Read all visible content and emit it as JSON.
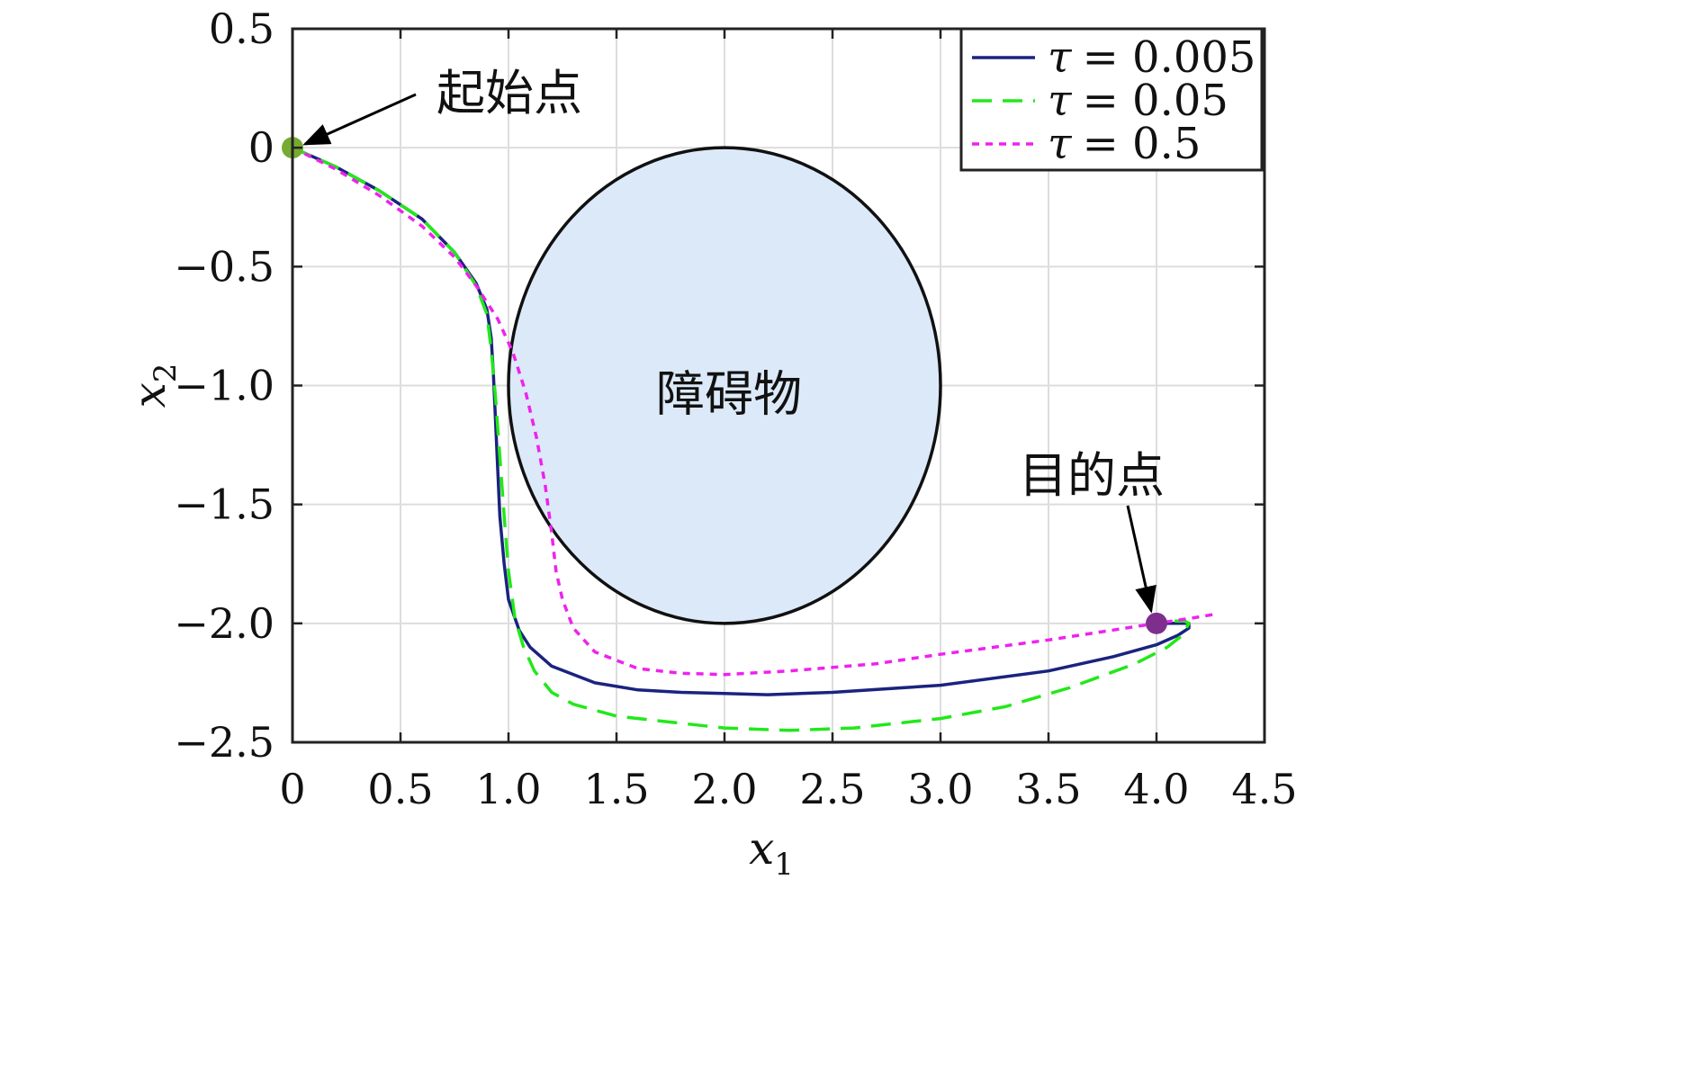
{
  "chart_data": {
    "type": "line",
    "xlabel": "x",
    "xlabel_sub": "1",
    "ylabel": "x",
    "ylabel_sub": "2",
    "xlim": [
      0,
      4.5
    ],
    "ylim": [
      -2.5,
      0.5
    ],
    "grid": true,
    "legend_position": "top-right",
    "xticks": [
      "0",
      "0.5",
      "1.0",
      "1.5",
      "2.0",
      "2.5",
      "3.0",
      "3.5",
      "4.0",
      "4.5"
    ],
    "xtick_values": [
      0,
      0.5,
      1.0,
      1.5,
      2.0,
      2.5,
      3.0,
      3.5,
      4.0,
      4.5
    ],
    "yticks": [
      "0.5",
      "0",
      "−0.5",
      "−1.0",
      "−1.5",
      "−2.0",
      "−2.5"
    ],
    "ytick_values": [
      0.5,
      0,
      -0.5,
      -1.0,
      -1.5,
      -2.0,
      -2.5
    ],
    "series": [
      {
        "name": "τ = 0.005",
        "tau_label": "τ",
        "value_label": "= 0.005",
        "color": "#1a237e",
        "dash": "solid",
        "x": [
          0,
          0.2,
          0.4,
          0.6,
          0.75,
          0.85,
          0.9,
          0.92,
          0.93,
          0.94,
          0.95,
          0.96,
          0.98,
          1.0,
          1.05,
          1.1,
          1.2,
          1.4,
          1.6,
          1.8,
          2.0,
          2.2,
          2.5,
          3.0,
          3.5,
          3.8,
          4.0,
          4.1,
          4.15,
          4.15,
          4.08,
          4.0
        ],
        "y": [
          0,
          -0.08,
          -0.18,
          -0.3,
          -0.44,
          -0.57,
          -0.68,
          -0.8,
          -0.95,
          -1.15,
          -1.35,
          -1.55,
          -1.75,
          -1.9,
          -2.03,
          -2.1,
          -2.18,
          -2.25,
          -2.28,
          -2.29,
          -2.295,
          -2.3,
          -2.29,
          -2.26,
          -2.2,
          -2.14,
          -2.09,
          -2.05,
          -2.02,
          -2.0,
          -2.0,
          -2.0
        ]
      },
      {
        "name": "τ = 0.05",
        "tau_label": "τ",
        "value_label": "= 0.05",
        "color": "#22e81a",
        "dash": "dashed",
        "x": [
          0,
          0.2,
          0.4,
          0.6,
          0.75,
          0.85,
          0.9,
          0.92,
          0.94,
          0.96,
          0.98,
          1.0,
          1.03,
          1.07,
          1.12,
          1.2,
          1.3,
          1.5,
          1.8,
          2.0,
          2.3,
          2.6,
          3.0,
          3.3,
          3.6,
          3.9,
          4.05,
          4.12,
          4.15,
          4.13,
          4.05,
          4.0
        ],
        "y": [
          0,
          -0.08,
          -0.18,
          -0.3,
          -0.44,
          -0.58,
          -0.7,
          -0.85,
          -1.05,
          -1.3,
          -1.55,
          -1.78,
          -1.98,
          -2.1,
          -2.2,
          -2.29,
          -2.34,
          -2.39,
          -2.42,
          -2.44,
          -2.45,
          -2.44,
          -2.4,
          -2.35,
          -2.27,
          -2.17,
          -2.1,
          -2.05,
          -2.0,
          -1.99,
          -1.99,
          -2.0
        ]
      },
      {
        "name": "τ = 0.5",
        "tau_label": "τ",
        "value_label": "= 0.5",
        "color": "#ee22ee",
        "dash": "dotted",
        "x": [
          0,
          0.2,
          0.4,
          0.6,
          0.75,
          0.85,
          0.95,
          1.02,
          1.08,
          1.13,
          1.17,
          1.2,
          1.22,
          1.25,
          1.3,
          1.4,
          1.6,
          1.8,
          2.0,
          2.3,
          2.7,
          3.0,
          3.5,
          4.0,
          4.15,
          4.28
        ],
        "y": [
          0,
          -0.09,
          -0.2,
          -0.33,
          -0.46,
          -0.58,
          -0.72,
          -0.86,
          -1.03,
          -1.22,
          -1.42,
          -1.62,
          -1.78,
          -1.9,
          -2.02,
          -2.12,
          -2.19,
          -2.21,
          -2.215,
          -2.2,
          -2.17,
          -2.13,
          -2.07,
          -2.0,
          -1.98,
          -1.96
        ]
      }
    ],
    "obstacle": {
      "label": "障碍物",
      "center": [
        2.0,
        -1.0
      ],
      "radius_x": 1.0,
      "radius_y": 1.0,
      "fill": "#dce9f8",
      "stroke": "#111111"
    },
    "points": [
      {
        "label": "起始点",
        "x": 0,
        "y": 0,
        "color": "#77aa33"
      },
      {
        "label": "目的点",
        "x": 4.0,
        "y": -2.0,
        "color": "#7e2f8e"
      }
    ]
  }
}
